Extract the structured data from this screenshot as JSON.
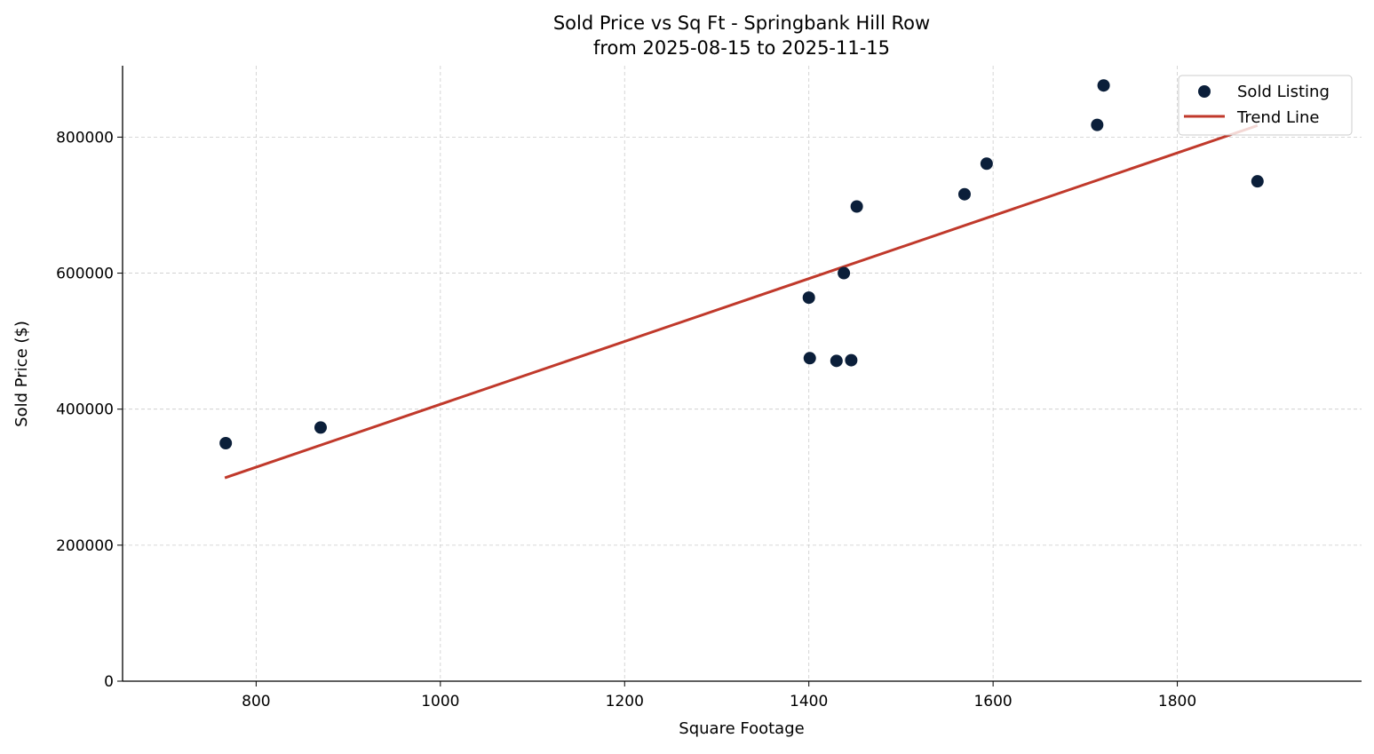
{
  "chart_data": {
    "type": "scatter",
    "title": "Sold Price vs Sq Ft - Springbank Hill Row",
    "subtitle": "from 2025-08-15 to 2025-11-15",
    "xlabel": "Square Footage",
    "ylabel": "Sold Price ($)",
    "xlim": [
      655,
      2000
    ],
    "ylim": [
      0,
      905000
    ],
    "xticks": [
      800,
      1000,
      1200,
      1400,
      1600,
      1800
    ],
    "yticks": [
      0,
      200000,
      400000,
      600000,
      800000
    ],
    "grid": true,
    "legend_position": "top-right",
    "series": [
      {
        "name": "Sold Listing",
        "type": "scatter",
        "color": "#0b1f3a",
        "points": [
          [
            767,
            350000
          ],
          [
            870,
            373000
          ],
          [
            1400,
            564000
          ],
          [
            1401,
            475000
          ],
          [
            1430,
            471000
          ],
          [
            1438,
            600000
          ],
          [
            1446,
            472000
          ],
          [
            1452,
            698000
          ],
          [
            1569,
            716000
          ],
          [
            1593,
            761000
          ],
          [
            1713,
            818000
          ],
          [
            1720,
            876000
          ],
          [
            1887,
            735000
          ]
        ]
      },
      {
        "name": "Trend Line",
        "type": "line",
        "color": "#c0392b",
        "points": [
          [
            766,
            299000
          ],
          [
            1887,
            817000
          ]
        ]
      }
    ]
  }
}
